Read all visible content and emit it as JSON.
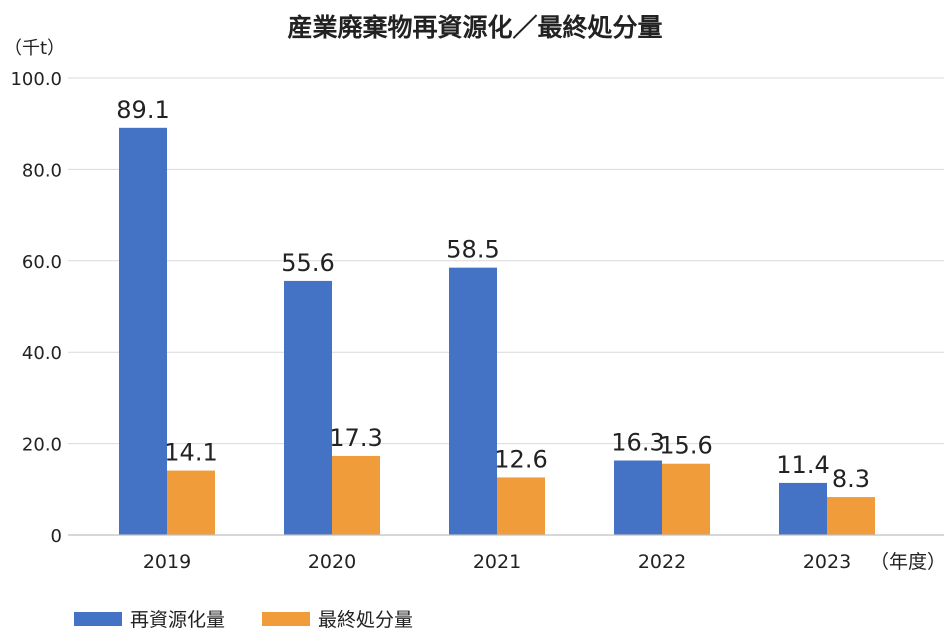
{
  "chart_data": {
    "type": "bar",
    "title": "産業廃棄物再資源化／最終処分量",
    "ylabel": "（千t）",
    "xlabel": "（年度）",
    "categories": [
      "2019",
      "2020",
      "2021",
      "2022",
      "2023"
    ],
    "series": [
      {
        "name": "再資源化量",
        "values": [
          89.1,
          55.6,
          58.5,
          16.3,
          11.4
        ],
        "labels": [
          "89.1",
          "55.6",
          "58.5",
          "16.3",
          "11.4"
        ],
        "color": "#4472C4"
      },
      {
        "name": "最終処分量",
        "values": [
          14.1,
          17.3,
          12.6,
          15.6,
          8.3
        ],
        "labels": [
          "14.1",
          "17.3",
          "12.6",
          "15.6",
          "8.3"
        ],
        "color": "#F09C3B"
      }
    ],
    "ylim": [
      0,
      100
    ],
    "yticks": [
      0,
      20,
      40,
      60,
      80,
      100
    ],
    "ytick_labels": [
      "0",
      "20.0",
      "40.0",
      "60.0",
      "80.0",
      "100.0"
    ],
    "grid": true,
    "legend_position": "bottom-left"
  }
}
